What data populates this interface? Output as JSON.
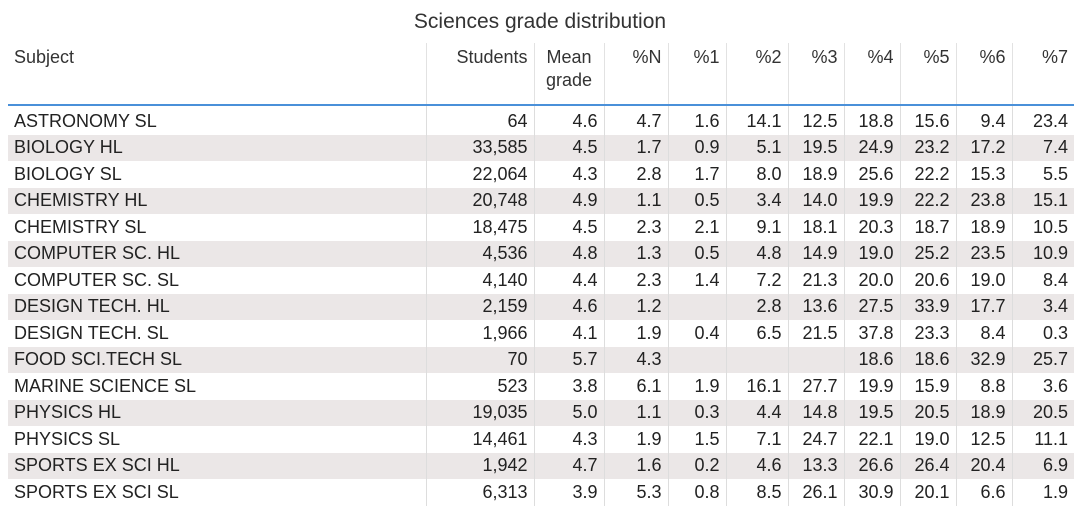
{
  "chart_data": {
    "type": "table",
    "title": "Sciences grade distribution",
    "columns": [
      "Subject",
      "Students",
      "Mean grade",
      "%N",
      "%1",
      "%2",
      "%3",
      "%4",
      "%5",
      "%6",
      "%7"
    ],
    "rows": [
      [
        "ASTRONOMY SL",
        "64",
        "4.6",
        "4.7",
        "1.6",
        "14.1",
        "12.5",
        "18.8",
        "15.6",
        "9.4",
        "23.4"
      ],
      [
        "BIOLOGY HL",
        "33,585",
        "4.5",
        "1.7",
        "0.9",
        "5.1",
        "19.5",
        "24.9",
        "23.2",
        "17.2",
        "7.4"
      ],
      [
        "BIOLOGY SL",
        "22,064",
        "4.3",
        "2.8",
        "1.7",
        "8.0",
        "18.9",
        "25.6",
        "22.2",
        "15.3",
        "5.5"
      ],
      [
        "CHEMISTRY HL",
        "20,748",
        "4.9",
        "1.1",
        "0.5",
        "3.4",
        "14.0",
        "19.9",
        "22.2",
        "23.8",
        "15.1"
      ],
      [
        "CHEMISTRY SL",
        "18,475",
        "4.5",
        "2.3",
        "2.1",
        "9.1",
        "18.1",
        "20.3",
        "18.7",
        "18.9",
        "10.5"
      ],
      [
        "COMPUTER SC. HL",
        "4,536",
        "4.8",
        "1.3",
        "0.5",
        "4.8",
        "14.9",
        "19.0",
        "25.2",
        "23.5",
        "10.9"
      ],
      [
        "COMPUTER SC. SL",
        "4,140",
        "4.4",
        "2.3",
        "1.4",
        "7.2",
        "21.3",
        "20.0",
        "20.6",
        "19.0",
        "8.4"
      ],
      [
        "DESIGN TECH. HL",
        "2,159",
        "4.6",
        "1.2",
        "",
        "2.8",
        "13.6",
        "27.5",
        "33.9",
        "17.7",
        "3.4"
      ],
      [
        "DESIGN TECH. SL",
        "1,966",
        "4.1",
        "1.9",
        "0.4",
        "6.5",
        "21.5",
        "37.8",
        "23.3",
        "8.4",
        "0.3"
      ],
      [
        "FOOD SCI.TECH SL",
        "70",
        "5.7",
        "4.3",
        "",
        "",
        "",
        "18.6",
        "18.6",
        "32.9",
        "25.7"
      ],
      [
        "MARINE SCIENCE SL",
        "523",
        "3.8",
        "6.1",
        "1.9",
        "16.1",
        "27.7",
        "19.9",
        "15.9",
        "8.8",
        "3.6"
      ],
      [
        "PHYSICS HL",
        "19,035",
        "5.0",
        "1.1",
        "0.3",
        "4.4",
        "14.8",
        "19.5",
        "20.5",
        "18.9",
        "20.5"
      ],
      [
        "PHYSICS SL",
        "14,461",
        "4.3",
        "1.9",
        "1.5",
        "7.1",
        "24.7",
        "22.1",
        "19.0",
        "12.5",
        "11.1"
      ],
      [
        "SPORTS EX SCI HL",
        "1,942",
        "4.7",
        "1.6",
        "0.2",
        "4.6",
        "13.3",
        "26.6",
        "26.4",
        "20.4",
        "6.9"
      ],
      [
        "SPORTS EX SCI SL",
        "6,313",
        "3.9",
        "5.3",
        "0.8",
        "8.5",
        "26.1",
        "30.9",
        "20.1",
        "6.6",
        "1.9"
      ]
    ],
    "header_rule_color": "#4a90d9",
    "stripe_color": "#ebe7e7"
  }
}
